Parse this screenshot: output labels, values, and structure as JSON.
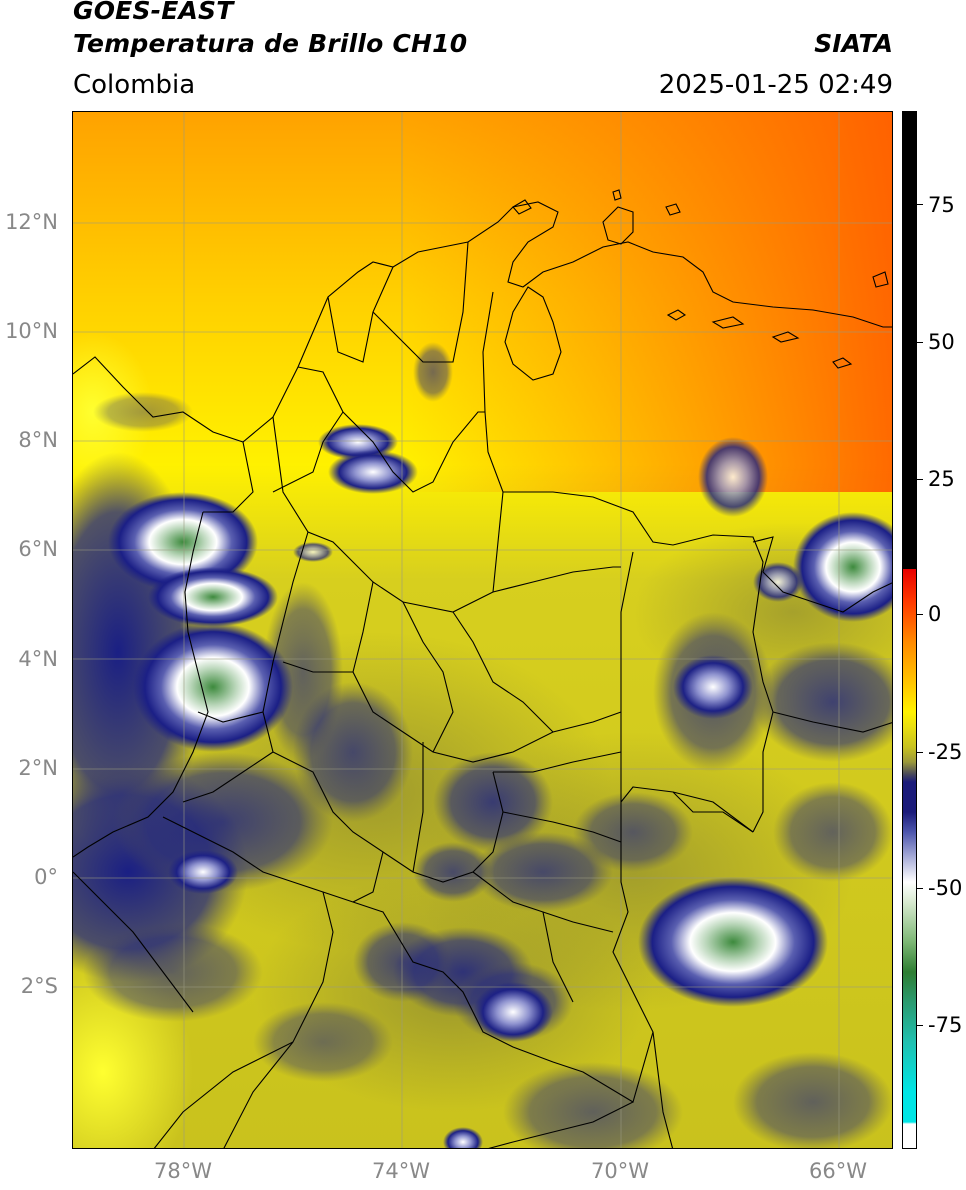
{
  "header": {
    "satellite": "GOES-EAST",
    "product": "Temperatura de Brillo CH10",
    "credit": "SIATA",
    "region": "Colombia",
    "timestamp": "2025-01-25 02:49"
  },
  "map": {
    "lat_labels": [
      "12°N",
      "10°N",
      "8°N",
      "6°N",
      "4°N",
      "2°N",
      "0°",
      "2°S"
    ],
    "lon_labels": [
      "78°W",
      "74°W",
      "70°W",
      "66°W"
    ]
  },
  "colorbar": {
    "tick_labels": [
      "75",
      "50",
      "25",
      "0",
      "-25",
      "-50",
      "-75"
    ],
    "colors": {
      "warm": "#ff6a00",
      "mild": "#ffd700",
      "olive": "#c8c21e",
      "cold": "#1a1a7a",
      "very_cold": "#ffffff",
      "coldest": "#2e7d32",
      "extreme": "#00e0e0",
      "above": "#000000"
    }
  }
}
